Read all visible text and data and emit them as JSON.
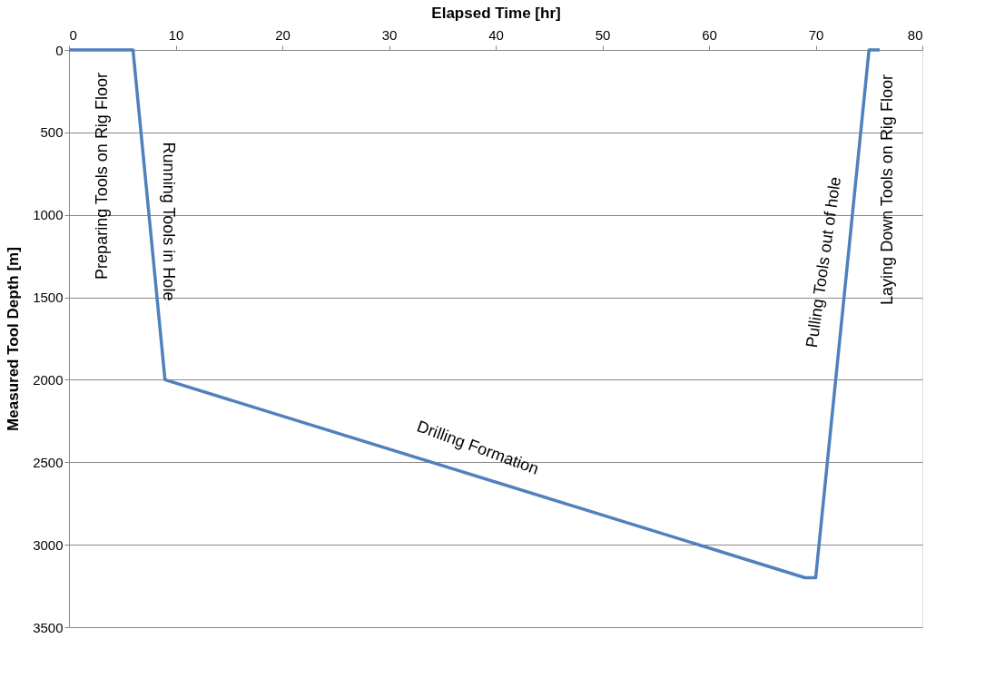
{
  "chart_data": {
    "type": "line",
    "xlabel": "Elapsed Time [hr]",
    "ylabel": "Measured Tool Depth [m]",
    "x": [
      0,
      6,
      9,
      69,
      70,
      75,
      76
    ],
    "series": [
      {
        "color": "#4f81bd",
        "values": [
          0,
          0,
          2000,
          3200,
          3200,
          0,
          0
        ]
      }
    ],
    "xlim": [
      0,
      80
    ],
    "xticks": [
      0,
      10,
      20,
      30,
      40,
      50,
      60,
      70,
      80
    ],
    "ylim": [
      3500,
      0
    ],
    "yticks": [
      0,
      500,
      1000,
      1500,
      2000,
      2500,
      3000,
      3500
    ],
    "grid": "y",
    "marker": "none",
    "line_style": "solid",
    "annotations": [
      "Preparing Tools on Rig Floor",
      "Running Tools in Hole",
      "Drilling Formation",
      "Pulling Tools out of hole",
      "Laying Down Tools on Rig Floor"
    ]
  }
}
